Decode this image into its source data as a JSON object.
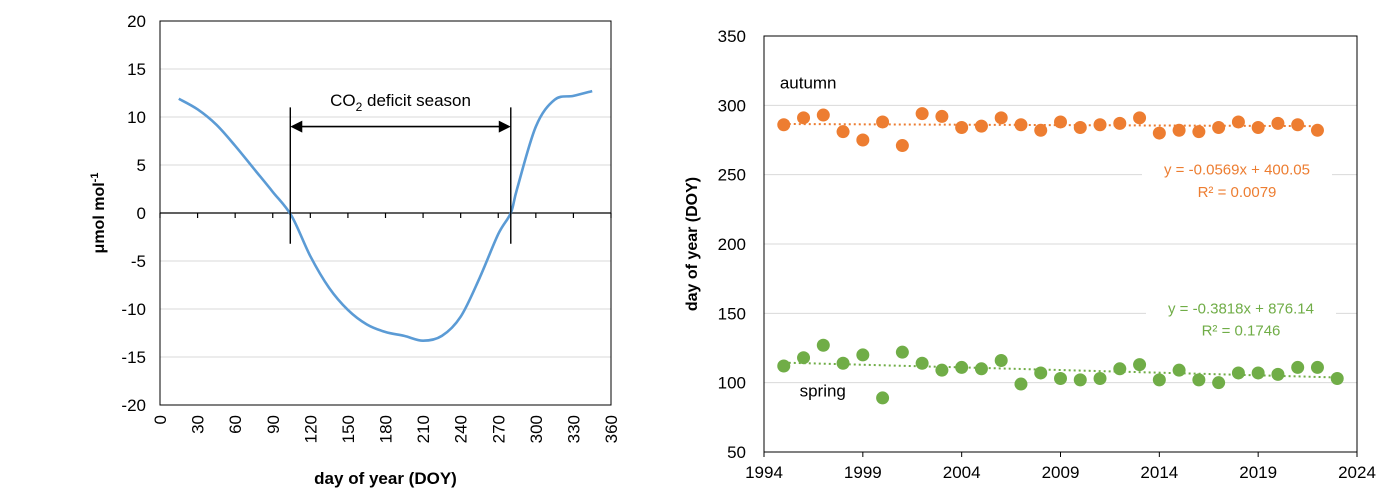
{
  "chart_data": [
    {
      "type": "line",
      "title": "",
      "xlabel": "day of year (DOY)",
      "ylabel": "μmol mol",
      "ylabel_superscript": "-1",
      "xlim": [
        0,
        360
      ],
      "ylim": [
        -20,
        20
      ],
      "x_ticks": [
        0,
        30,
        60,
        90,
        120,
        150,
        180,
        210,
        240,
        270,
        300,
        330,
        360
      ],
      "y_ticks": [
        -20,
        -15,
        -10,
        -5,
        0,
        5,
        10,
        15,
        20
      ],
      "grid": true,
      "line_color": "#5B9BD5",
      "series": [
        {
          "x": [
            15,
            30,
            45,
            60,
            75,
            90,
            105,
            120,
            135,
            150,
            165,
            180,
            195,
            210,
            225,
            240,
            255,
            270,
            280,
            285,
            300,
            315,
            330,
            345
          ],
          "y": [
            11.9,
            10.8,
            9.2,
            7.0,
            4.6,
            2.2,
            -0.3,
            -4.5,
            -7.8,
            -10.1,
            -11.6,
            -12.4,
            -12.8,
            -13.3,
            -12.8,
            -10.8,
            -6.8,
            -2.2,
            0.0,
            2.5,
            9.0,
            11.8,
            12.2,
            12.7
          ]
        }
      ],
      "annotation": {
        "label_prefix": "CO",
        "label_subscript": "2",
        "label_suffix": " deficit season",
        "start_doy": 104,
        "end_doy": 280
      }
    },
    {
      "type": "scatter",
      "title": "",
      "xlabel": "",
      "ylabel": "day of year (DOY)",
      "xlim": [
        1994,
        2024
      ],
      "ylim": [
        50,
        350
      ],
      "x_ticks": [
        1994,
        1999,
        2004,
        2009,
        2014,
        2019,
        2024
      ],
      "y_ticks": [
        50,
        100,
        150,
        200,
        250,
        300,
        350
      ],
      "grid": true,
      "series": [
        {
          "name": "autumn",
          "color": "#ED7D31",
          "x": [
            1995,
            1996,
            1997,
            1998,
            1999,
            2000,
            2001,
            2002,
            2003,
            2004,
            2005,
            2006,
            2007,
            2008,
            2009,
            2010,
            2011,
            2012,
            2013,
            2014,
            2015,
            2016,
            2017,
            2018,
            2019,
            2020,
            2021,
            2022
          ],
          "y": [
            286,
            291,
            293,
            281,
            275,
            288,
            271,
            294,
            292,
            284,
            285,
            291,
            286,
            282,
            288,
            284,
            286,
            287,
            291,
            280,
            282,
            281,
            284,
            288,
            284,
            287,
            286,
            282
          ],
          "trend": {
            "slope": -0.0569,
            "intercept": 400.05
          },
          "equation": "y = -0.0569x + 400.05",
          "r2": "R² = 0.0079"
        },
        {
          "name": "spring",
          "color": "#70AD47",
          "x": [
            1995,
            1996,
            1997,
            1998,
            1999,
            2000,
            2001,
            2002,
            2003,
            2004,
            2005,
            2006,
            2007,
            2008,
            2009,
            2010,
            2011,
            2012,
            2013,
            2014,
            2015,
            2016,
            2017,
            2018,
            2019,
            2020,
            2021,
            2022,
            2023
          ],
          "y": [
            112,
            118,
            127,
            114,
            120,
            89,
            122,
            114,
            109,
            111,
            110,
            116,
            99,
            107,
            103,
            102,
            103,
            110,
            113,
            102,
            109,
            102,
            100,
            107,
            107,
            106,
            111,
            111,
            103
          ],
          "trend": {
            "slope": -0.3818,
            "intercept": 876.14
          },
          "equation": "y = -0.3818x + 876.14",
          "r2": "R² = 0.1746"
        }
      ]
    }
  ]
}
